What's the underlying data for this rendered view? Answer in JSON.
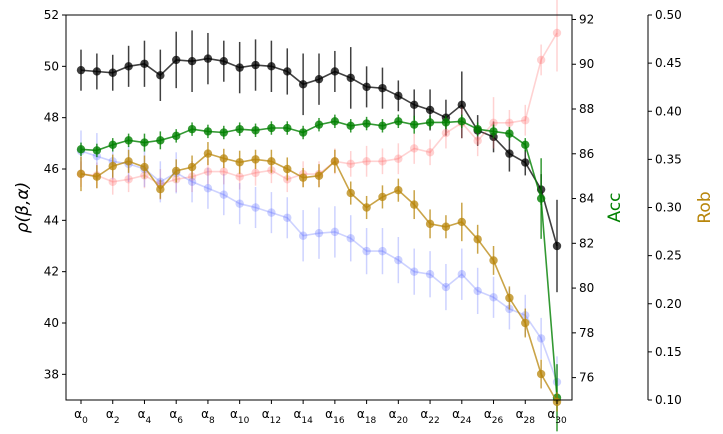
{
  "chart_data": {
    "type": "line",
    "title": "",
    "x": [
      "α0",
      "α1",
      "α2",
      "α3",
      "α4",
      "α5",
      "α6",
      "α7",
      "α8",
      "α9",
      "α10",
      "α11",
      "α12",
      "α13",
      "α14",
      "α15",
      "α16",
      "α17",
      "α18",
      "α19",
      "α20",
      "α21",
      "α22",
      "α23",
      "α24",
      "α25",
      "α26",
      "α27",
      "α28",
      "α29",
      "α30"
    ],
    "x_tick_labels": [
      "α0",
      "α2",
      "α4",
      "α6",
      "α8",
      "α10",
      "α12",
      "α14",
      "α16",
      "α18",
      "α20",
      "α22",
      "α24",
      "α26",
      "α28",
      "α30"
    ],
    "axes": {
      "left": {
        "label": "ρ(β,α)",
        "ylim": [
          37,
          52
        ],
        "ticks": [
          "38",
          "40",
          "42",
          "44",
          "46",
          "48",
          "50",
          "52"
        ],
        "color": "#000000"
      },
      "right1": {
        "label": "Acc",
        "ylim": [
          75,
          92.2
        ],
        "ticks": [
          "76",
          "78",
          "80",
          "82",
          "84",
          "86",
          "88",
          "90",
          "92"
        ],
        "color": "#008000"
      },
      "right2": {
        "label": "Rob",
        "ylim": [
          0.1,
          0.5
        ],
        "ticks": [
          "0.10",
          "0.15",
          "0.20",
          "0.25",
          "0.30",
          "0.35",
          "0.40",
          "0.45",
          "0.50"
        ],
        "color": "#b8860b"
      }
    },
    "grid": false,
    "series": [
      {
        "axis": "left",
        "color": "#000000",
        "alpha": 0.75,
        "values": [
          49.85,
          49.8,
          49.75,
          50.0,
          50.1,
          49.65,
          50.25,
          50.2,
          50.3,
          50.2,
          49.95,
          50.05,
          50.0,
          49.8,
          49.3,
          49.5,
          49.8,
          49.55,
          49.2,
          49.15,
          48.85,
          48.5,
          48.3,
          48.0,
          48.5,
          47.5,
          47.25,
          46.6,
          46.25,
          45.2,
          43.0
        ],
        "errors": [
          0.8,
          0.7,
          0.7,
          0.8,
          0.9,
          1.0,
          1.1,
          1.2,
          1.0,
          0.8,
          1.0,
          1.0,
          1.0,
          0.9,
          1.2,
          1.0,
          0.8,
          1.2,
          0.8,
          0.8,
          0.6,
          0.6,
          0.8,
          0.7,
          1.3,
          0.6,
          0.6,
          0.7,
          0.5,
          0.6,
          1.8
        ]
      },
      {
        "axis": "left",
        "color": "#ff6b6b",
        "alpha": 0.3,
        "values": [
          45.8,
          45.75,
          45.5,
          45.6,
          45.75,
          45.4,
          45.6,
          45.7,
          45.9,
          45.9,
          45.7,
          45.85,
          45.95,
          45.6,
          45.8,
          45.8,
          46.3,
          46.2,
          46.3,
          46.3,
          46.4,
          46.8,
          46.65,
          47.4,
          47.8,
          47.1,
          47.8,
          47.8,
          47.9,
          50.25,
          51.3
        ],
        "errors": [
          0.5,
          0.5,
          0.5,
          0.5,
          0.5,
          0.6,
          0.5,
          0.6,
          0.5,
          0.5,
          0.5,
          0.5,
          0.5,
          0.5,
          0.5,
          0.5,
          0.5,
          0.5,
          0.6,
          0.5,
          0.6,
          0.6,
          0.5,
          0.6,
          0.6,
          0.6,
          1.0,
          0.5,
          0.6,
          0.6,
          1.5
        ]
      },
      {
        "axis": "left",
        "color": "#5b6bff",
        "alpha": 0.3,
        "values": [
          46.7,
          46.5,
          46.3,
          46.2,
          46.0,
          45.5,
          45.85,
          45.5,
          45.25,
          45.0,
          44.65,
          44.5,
          44.3,
          44.1,
          43.4,
          43.5,
          43.55,
          43.3,
          42.8,
          42.8,
          42.45,
          42.0,
          41.9,
          41.4,
          41.9,
          41.25,
          41.0,
          40.55,
          40.3,
          39.4,
          37.7
        ],
        "errors": [
          0.8,
          0.9,
          0.7,
          0.7,
          0.7,
          0.8,
          0.8,
          0.8,
          0.8,
          0.8,
          0.8,
          0.8,
          0.8,
          0.8,
          1.0,
          1.0,
          1.0,
          0.9,
          0.9,
          0.9,
          0.9,
          0.9,
          0.9,
          0.9,
          1.0,
          0.9,
          0.8,
          0.8,
          0.8,
          0.8,
          1.0
        ]
      },
      {
        "axis": "right1",
        "color": "#008000",
        "alpha": 0.8,
        "values": [
          86.2,
          86.15,
          86.4,
          86.6,
          86.5,
          86.6,
          86.8,
          87.1,
          87.0,
          86.95,
          87.1,
          87.05,
          87.15,
          87.15,
          86.95,
          87.3,
          87.45,
          87.25,
          87.35,
          87.25,
          87.45,
          87.3,
          87.4,
          87.4,
          87.45,
          87.1,
          87.0,
          86.9,
          86.4,
          84.0,
          75.1
        ],
        "errors": [
          0.3,
          0.3,
          0.3,
          0.3,
          0.4,
          0.4,
          0.3,
          0.3,
          0.3,
          0.3,
          0.3,
          0.3,
          0.3,
          0.3,
          0.3,
          0.3,
          0.3,
          0.3,
          0.3,
          0.3,
          0.3,
          0.4,
          0.3,
          0.3,
          0.3,
          0.3,
          0.3,
          0.3,
          0.3,
          1.8,
          1.5
        ]
      },
      {
        "axis": "right2",
        "color": "#b8860b",
        "alpha": 0.75,
        "values": [
          0.335,
          0.332,
          0.343,
          0.348,
          0.342,
          0.319,
          0.338,
          0.342,
          0.356,
          0.351,
          0.347,
          0.35,
          0.348,
          0.34,
          0.331,
          0.333,
          0.348,
          0.315,
          0.3,
          0.311,
          0.318,
          0.303,
          0.283,
          0.28,
          0.285,
          0.267,
          0.245,
          0.206,
          0.18,
          0.127,
          0.098
        ],
        "errors": [
          0.018,
          0.012,
          0.012,
          0.012,
          0.012,
          0.01,
          0.012,
          0.012,
          0.012,
          0.01,
          0.012,
          0.01,
          0.012,
          0.012,
          0.01,
          0.012,
          0.012,
          0.012,
          0.012,
          0.012,
          0.012,
          0.015,
          0.015,
          0.012,
          0.02,
          0.015,
          0.015,
          0.012,
          0.015,
          0.015,
          0.01
        ]
      }
    ]
  }
}
